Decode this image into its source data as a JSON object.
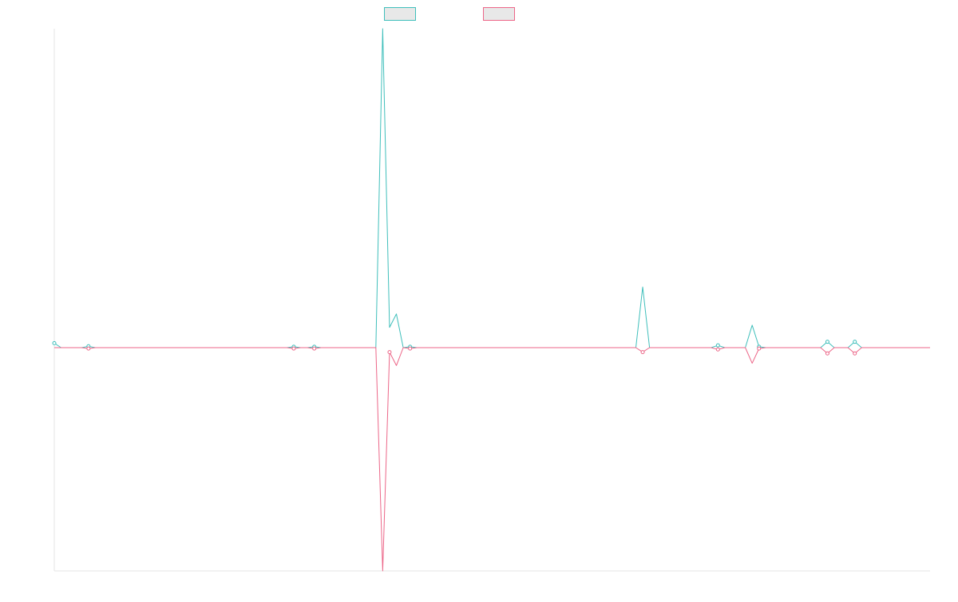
{
  "chart_data": {
    "type": "line",
    "title": "",
    "xlabel": "",
    "ylabel": "",
    "legend_position": "top-center",
    "grid": false,
    "x_count": 129,
    "xlim": [
      0,
      128
    ],
    "ylim": [
      -1.0,
      1.42
    ],
    "baseline": 0,
    "colors": {
      "series1": "#3fbfbb",
      "series2": "#ec6688",
      "axis": "#e6e6e6",
      "legend_fill": "#e8e8e8"
    },
    "series": [
      {
        "color": "#3fbfbb",
        "line_width": 1,
        "show_points": true,
        "nonzero": [
          [
            0,
            0.02
          ],
          [
            5,
            0.006
          ],
          [
            35,
            0.004
          ],
          [
            38,
            0.004
          ],
          [
            48,
            1.42
          ],
          [
            49,
            0.09
          ],
          [
            50,
            0.15
          ],
          [
            52,
            0.004
          ],
          [
            86,
            0.27
          ],
          [
            97,
            0.01
          ],
          [
            102,
            0.1
          ],
          [
            103,
            0.004
          ],
          [
            113,
            0.026
          ],
          [
            117,
            0.026
          ]
        ]
      },
      {
        "color": "#ec6688",
        "line_width": 1,
        "show_points": true,
        "nonzero": [
          [
            5,
            -0.004
          ],
          [
            35,
            -0.004
          ],
          [
            38,
            -0.004
          ],
          [
            48,
            -1.0
          ],
          [
            49,
            -0.02
          ],
          [
            50,
            -0.08
          ],
          [
            52,
            -0.004
          ],
          [
            86,
            -0.02
          ],
          [
            97,
            -0.008
          ],
          [
            102,
            -0.07
          ],
          [
            103,
            -0.004
          ],
          [
            113,
            -0.026
          ],
          [
            117,
            -0.026
          ]
        ]
      }
    ]
  }
}
